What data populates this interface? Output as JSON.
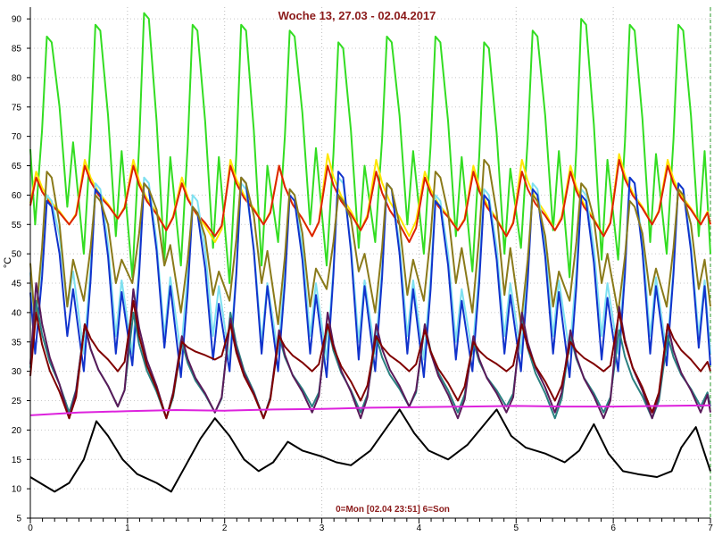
{
  "chart_data": {
    "type": "line",
    "title": "Woche 13, 27.03 - 02.04.2017",
    "footer": "0=Mon [02.04 23:51] 6=Son",
    "ylabel": "°C",
    "xlim": [
      0,
      7
    ],
    "ylim": [
      5,
      92
    ],
    "xticks": [
      "0",
      "1",
      "2",
      "3",
      "4",
      "5",
      "6",
      "7"
    ],
    "yticks": [
      "5",
      "10",
      "15",
      "20",
      "25",
      "30",
      "35",
      "40",
      "45",
      "50",
      "55",
      "60",
      "65",
      "70",
      "75",
      "80",
      "85",
      "90"
    ],
    "grid": true,
    "legend": "none",
    "series": [
      {
        "color": "#33dd22",
        "peaks": [
          87,
          89,
          91,
          89,
          89,
          88,
          86,
          87,
          87,
          86,
          88,
          90,
          89,
          89
        ],
        "troughs": [
          55,
          50,
          46,
          48,
          45,
          52,
          48,
          52,
          50,
          47,
          51,
          46,
          49,
          50
        ],
        "style": "sharp"
      },
      {
        "color": "#ffe600",
        "peaks": [
          64,
          66,
          66,
          63,
          66,
          65,
          67,
          66,
          64,
          65,
          66,
          65,
          67,
          66
        ],
        "troughs": [
          55,
          56,
          54,
          52,
          55,
          53,
          54,
          53,
          54,
          53,
          54,
          53,
          55,
          55
        ],
        "style": "smooth"
      },
      {
        "color": "#dd2200",
        "peaks": [
          63,
          65,
          65,
          62,
          65,
          65,
          65,
          64,
          63,
          64,
          64,
          64,
          66,
          65
        ],
        "troughs": [
          55,
          56,
          54,
          53,
          55,
          53,
          54,
          52,
          54,
          53,
          54,
          53,
          55,
          55
        ],
        "style": "smooth"
      },
      {
        "color": "#7ee0f0",
        "peaks": [
          60,
          62,
          63,
          60,
          62,
          61,
          63,
          62,
          60,
          61,
          62,
          61,
          63,
          62
        ],
        "troughs": [
          38,
          33,
          33,
          33,
          32,
          33,
          32,
          33,
          32,
          33,
          33,
          33,
          33,
          33
        ],
        "style": "sharp"
      },
      {
        "color": "#1133cc",
        "peaks": [
          59,
          61,
          62,
          58,
          63,
          60,
          64,
          62,
          59,
          60,
          61,
          60,
          63,
          62
        ],
        "troughs": [
          33,
          30,
          31,
          29,
          30,
          30,
          29,
          30,
          29,
          30,
          30,
          29,
          30,
          31
        ],
        "style": "sharp"
      },
      {
        "color": "#8a7a1a",
        "peaks": [
          64,
          60,
          62,
          58,
          63,
          61,
          60,
          62,
          64,
          66,
          60,
          62,
          59,
          61
        ],
        "troughs": [
          38,
          42,
          45,
          40,
          42,
          38,
          44,
          40,
          42,
          40,
          38,
          42,
          40,
          41
        ],
        "style": "sharp"
      },
      {
        "color": "#2a8080",
        "peaks": [
          42,
          38,
          40,
          35,
          40,
          36,
          38,
          36,
          38,
          35,
          39,
          36,
          37,
          36
        ],
        "troughs": [
          23,
          24,
          22,
          23,
          22,
          24,
          23,
          24,
          23,
          24,
          22,
          23,
          22,
          24
        ],
        "style": "smooth"
      },
      {
        "color": "#5a1a5a",
        "peaks": [
          45,
          38,
          44,
          36,
          39,
          37,
          40,
          38,
          38,
          36,
          40,
          37,
          41,
          38
        ],
        "troughs": [
          22,
          24,
          22,
          23,
          22,
          23,
          22,
          24,
          22,
          23,
          23,
          22,
          22,
          23
        ],
        "style": "smooth"
      },
      {
        "color": "#800000",
        "peaks": [
          40,
          38,
          42,
          35,
          38,
          36,
          38,
          36,
          37,
          35,
          38,
          35,
          40,
          38
        ],
        "troughs": [
          22,
          30,
          22,
          32,
          22,
          30,
          25,
          30,
          25,
          30,
          25,
          30,
          23,
          30
        ],
        "style": "smooth"
      },
      {
        "color": "#dd22dd",
        "x": [
          0,
          0.5,
          1,
          1.5,
          2,
          2.5,
          3,
          3.5,
          4,
          4.5,
          5,
          5.5,
          6,
          6.5,
          7
        ],
        "values": [
          22.5,
          23,
          23.2,
          23.4,
          23.3,
          23.5,
          23.6,
          23.8,
          23.9,
          24,
          24.1,
          24,
          24,
          24.1,
          24.2
        ]
      },
      {
        "color": "#000000",
        "x": [
          0,
          0.1,
          0.25,
          0.4,
          0.55,
          0.68,
          0.8,
          0.95,
          1.1,
          1.3,
          1.45,
          1.6,
          1.75,
          1.9,
          2.05,
          2.2,
          2.35,
          2.5,
          2.65,
          2.8,
          3.0,
          3.15,
          3.3,
          3.5,
          3.65,
          3.8,
          3.95,
          4.1,
          4.3,
          4.5,
          4.65,
          4.8,
          4.95,
          5.1,
          5.3,
          5.5,
          5.65,
          5.8,
          5.95,
          6.1,
          6.25,
          6.45,
          6.6,
          6.7,
          6.85,
          7.0
        ],
        "values": [
          12,
          11,
          9.5,
          11,
          15,
          21.5,
          19,
          15,
          12.5,
          11,
          9.5,
          14,
          18.5,
          22,
          19,
          15,
          13,
          14.5,
          18,
          16.5,
          15.5,
          14.5,
          14,
          16.5,
          20,
          23.5,
          19.5,
          16.5,
          15,
          17.5,
          20.5,
          23.5,
          19,
          17,
          16,
          14.5,
          16.5,
          21,
          16,
          13,
          12.5,
          12,
          13,
          17,
          20.5,
          13
        ]
      }
    ]
  }
}
